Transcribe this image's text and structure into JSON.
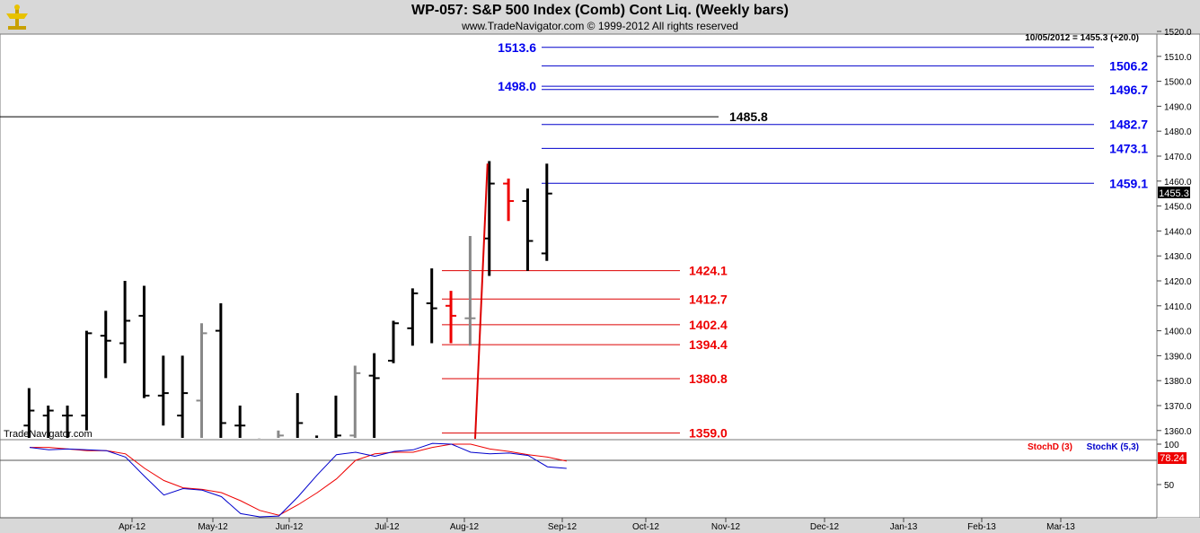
{
  "header": {
    "title": "WP-057:  S&P 500 Index (Comb) Cont Liq.  (Weekly bars)",
    "subtitle": "www.TradeNavigator.com © 1999-2012 All rights reserved",
    "quote": "10/05/2012 = 1455.3 (+20.0)",
    "watermark": "TradeNavigator.com"
  },
  "chart_data": [
    {
      "type": "ohlc",
      "title": "WP-057:  S&P 500 Index (Comb) Cont Liq.  (Weekly bars)",
      "ylim": [
        1355,
        1522
      ],
      "yticks": [
        1360,
        1370,
        1380,
        1390,
        1400,
        1410,
        1420,
        1430,
        1440,
        1450,
        1460,
        1470,
        1480,
        1490,
        1500,
        1510,
        1520
      ],
      "xticks": [
        "Apr-12",
        "May-12",
        "Jun-12",
        "Jul-12",
        "Aug-12",
        "Sep-12",
        "Oct-12",
        "Nov-12",
        "Dec-12",
        "Jan-13",
        "Feb-13",
        "Mar-13"
      ],
      "last_price": "1455.3",
      "bars": [
        {
          "week": 1,
          "o": 1362,
          "h": 1377,
          "l": 1355,
          "c": 1368,
          "color": "#000000"
        },
        {
          "week": 2,
          "o": 1366,
          "h": 1370,
          "l": 1355,
          "c": 1368,
          "color": "#000000"
        },
        {
          "week": 3,
          "o": 1366,
          "h": 1370,
          "l": 1355,
          "c": 1366,
          "color": "#000000"
        },
        {
          "week": 4,
          "o": 1366,
          "h": 1400,
          "l": 1360,
          "c": 1399,
          "color": "#000000"
        },
        {
          "week": 5,
          "o": 1398,
          "h": 1408,
          "l": 1381,
          "c": 1396,
          "color": "#000000"
        },
        {
          "week": 6,
          "o": 1395,
          "h": 1420,
          "l": 1387,
          "c": 1404,
          "color": "#000000"
        },
        {
          "week": 7,
          "o": 1406,
          "h": 1418,
          "l": 1373,
          "c": 1374,
          "color": "#000000"
        },
        {
          "week": 8,
          "o": 1374,
          "h": 1390,
          "l": 1362,
          "c": 1375,
          "color": "#000000"
        },
        {
          "week": 9,
          "o": 1366,
          "h": 1390,
          "l": 1357,
          "c": 1375,
          "color": "#000000"
        },
        {
          "week": 10,
          "o": 1372,
          "h": 1403,
          "l": 1355,
          "c": 1399,
          "color": "#888888"
        },
        {
          "week": 11,
          "o": 1400,
          "h": 1411,
          "l": 1357,
          "c": 1363,
          "color": "#000000"
        },
        {
          "week": 12,
          "o": 1362,
          "h": 1370,
          "l": 1355,
          "c": 1362,
          "color": "#000000"
        },
        {
          "week": 13,
          "o": 1357,
          "h": 1357,
          "l": 1355,
          "c": 1355,
          "color": "#000000"
        },
        {
          "week": 14,
          "o": 1355,
          "h": 1360,
          "l": 1355,
          "c": 1358,
          "color": "#888888"
        },
        {
          "week": 15,
          "o": 1357,
          "h": 1375,
          "l": 1355,
          "c": 1363,
          "color": "#000000"
        },
        {
          "week": 16,
          "o": 1355,
          "h": 1358,
          "l": 1355,
          "c": 1356,
          "color": "#000000"
        },
        {
          "week": 17,
          "o": 1355,
          "h": 1374,
          "l": 1355,
          "c": 1358,
          "color": "#000000"
        },
        {
          "week": 18,
          "o": 1358,
          "h": 1386,
          "l": 1355,
          "c": 1383,
          "color": "#888888"
        },
        {
          "week": 19,
          "o": 1382,
          "h": 1391,
          "l": 1355,
          "c": 1381,
          "color": "#000000"
        },
        {
          "week": 20,
          "o": 1388,
          "h": 1404,
          "l": 1387,
          "c": 1403,
          "color": "#000000"
        },
        {
          "week": 21,
          "o": 1401,
          "h": 1417,
          "l": 1394,
          "c": 1415,
          "color": "#000000"
        },
        {
          "week": 22,
          "o": 1411,
          "h": 1425,
          "l": 1395,
          "c": 1409,
          "color": "#000000"
        },
        {
          "week": 23,
          "o": 1410,
          "h": 1416,
          "l": 1395,
          "c": 1406,
          "color": "#ee0000"
        },
        {
          "week": 24,
          "o": 1405,
          "h": 1438,
          "l": 1394,
          "c": 1405,
          "color": "#888888"
        },
        {
          "week": 25,
          "o": 1437,
          "h": 1468,
          "l": 1422,
          "c": 1459,
          "color": "#000000"
        },
        {
          "week": 26,
          "o": 1459,
          "h": 1461,
          "l": 1444,
          "c": 1452,
          "color": "#ee0000"
        },
        {
          "week": 27,
          "o": 1452,
          "h": 1457,
          "l": 1424,
          "c": 1436,
          "color": "#000000"
        },
        {
          "week": 28,
          "o": 1431,
          "h": 1467,
          "l": 1428,
          "c": 1455,
          "color": "#000000"
        }
      ],
      "trendline": {
        "from": [
          1359,
          1356
        ],
        "to": [
          1467,
          1467
        ],
        "color": "#dd0000"
      },
      "levels_blue": [
        {
          "value": 1513.6,
          "label": "1513.6",
          "side": "left"
        },
        {
          "value": 1506.2,
          "label": "1506.2",
          "side": "right"
        },
        {
          "value": 1498.0,
          "label": "1498.0",
          "side": "left"
        },
        {
          "value": 1496.7,
          "label": "1496.7",
          "side": "right"
        },
        {
          "value": 1482.7,
          "label": "1482.7",
          "side": "right"
        },
        {
          "value": 1473.1,
          "label": "1473.1",
          "side": "right"
        },
        {
          "value": 1459.1,
          "label": "1459.1",
          "side": "right"
        }
      ],
      "level_black": {
        "value": 1485.8,
        "label": "1485.8"
      },
      "levels_red": [
        {
          "value": 1424.1,
          "label": "1424.1"
        },
        {
          "value": 1412.7,
          "label": "1412.7"
        },
        {
          "value": 1402.4,
          "label": "1402.4"
        },
        {
          "value": 1394.4,
          "label": "1394.4"
        },
        {
          "value": 1380.8,
          "label": "1380.8"
        },
        {
          "value": 1359.0,
          "label": "1359.0"
        }
      ]
    },
    {
      "type": "line",
      "title": "",
      "ylim": [
        0,
        108
      ],
      "yticks": [
        50,
        100
      ],
      "legend": [
        "StochD (3)",
        "StochK (5,3)"
      ],
      "last_value": "78.24",
      "series": [
        {
          "name": "StochD (3)",
          "color": "#ee0000",
          "x": [
            0,
            1,
            2,
            3,
            4,
            5,
            6,
            7,
            8,
            9,
            10,
            11,
            12,
            13,
            14,
            15,
            16,
            17,
            18,
            19,
            20,
            21,
            22,
            23,
            24,
            25,
            26,
            27,
            28
          ],
          "values": [
            96,
            96,
            94,
            92,
            92,
            88,
            70,
            55,
            46,
            44,
            40,
            30,
            18,
            12,
            25,
            40,
            57,
            80,
            88,
            90,
            90,
            96,
            100,
            100,
            94,
            91,
            87,
            84,
            79
          ]
        },
        {
          "name": "StochK (5,3)",
          "color": "#0000cc",
          "x": [
            0,
            1,
            2,
            3,
            4,
            5,
            6,
            7,
            8,
            9,
            10,
            11,
            12,
            13,
            14,
            15,
            16,
            17,
            18,
            19,
            20,
            21,
            22,
            23,
            24,
            25,
            26,
            27,
            28
          ],
          "values": [
            96,
            93,
            94,
            93,
            92,
            84,
            60,
            37,
            45,
            43,
            35,
            14,
            10,
            11,
            35,
            62,
            87,
            90,
            85,
            91,
            93,
            101,
            100,
            90,
            88,
            89,
            86,
            72,
            70
          ]
        }
      ]
    }
  ]
}
